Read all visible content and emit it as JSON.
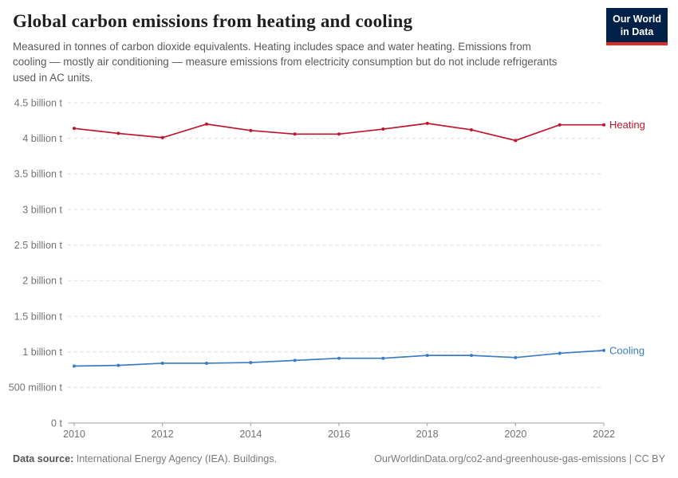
{
  "header": {
    "title": "Global carbon emissions from heating and cooling",
    "subtitle": "Measured in tonnes of carbon dioxide equivalents. Heating includes space and water heating. Emissions from cooling — mostly air conditioning — measure emissions from electricity consumption but do not include refrigerants used in AC units.",
    "logo": {
      "line1": "Our World",
      "line2": "in Data",
      "bg_color": "#002147",
      "stripe_color": "#dc2f27"
    }
  },
  "chart_data": {
    "type": "line",
    "title": "Global carbon emissions from heating and cooling",
    "unit": "billion tonnes of CO2-equivalents",
    "x": [
      2010,
      2011,
      2012,
      2013,
      2014,
      2015,
      2016,
      2017,
      2018,
      2019,
      2020,
      2021,
      2022
    ],
    "series": [
      {
        "name": "Heating",
        "color": "#c0152c",
        "values": [
          4.14,
          4.07,
          4.01,
          4.2,
          4.11,
          4.06,
          4.06,
          4.13,
          4.21,
          4.12,
          3.97,
          4.19,
          4.19
        ]
      },
      {
        "name": "Cooling",
        "color": "#3b7cc4",
        "values": [
          0.8,
          0.81,
          0.84,
          0.84,
          0.85,
          0.88,
          0.91,
          0.91,
          0.95,
          0.95,
          0.92,
          0.98,
          1.02
        ]
      }
    ],
    "yticks": [
      {
        "value": 0,
        "label": "0 t"
      },
      {
        "value": 0.5,
        "label": "500 million t"
      },
      {
        "value": 1,
        "label": "1 billion t"
      },
      {
        "value": 1.5,
        "label": "1.5 billion t"
      },
      {
        "value": 2,
        "label": "2 billion t"
      },
      {
        "value": 2.5,
        "label": "2.5 billion t"
      },
      {
        "value": 3,
        "label": "3 billion t"
      },
      {
        "value": 3.5,
        "label": "3.5 billion t"
      },
      {
        "value": 4,
        "label": "4 billion t"
      },
      {
        "value": 4.5,
        "label": "4.5 billion t"
      }
    ],
    "xticks": [
      2010,
      2012,
      2014,
      2016,
      2018,
      2020,
      2022
    ],
    "ylim": [
      0,
      4.5
    ],
    "xlim": [
      2010,
      2022
    ],
    "grid": "horizontal-dashed",
    "legend_position": "end-of-line labels",
    "grid_color": "#dcdcdc",
    "axis_color": "#a1a1a1"
  },
  "footer": {
    "source_label": "Data source:",
    "source_text": " International Energy Agency (IEA). Buildings.",
    "credit": "OurWorldinData.org/co2-and-greenhouse-gas-emissions | CC BY"
  }
}
